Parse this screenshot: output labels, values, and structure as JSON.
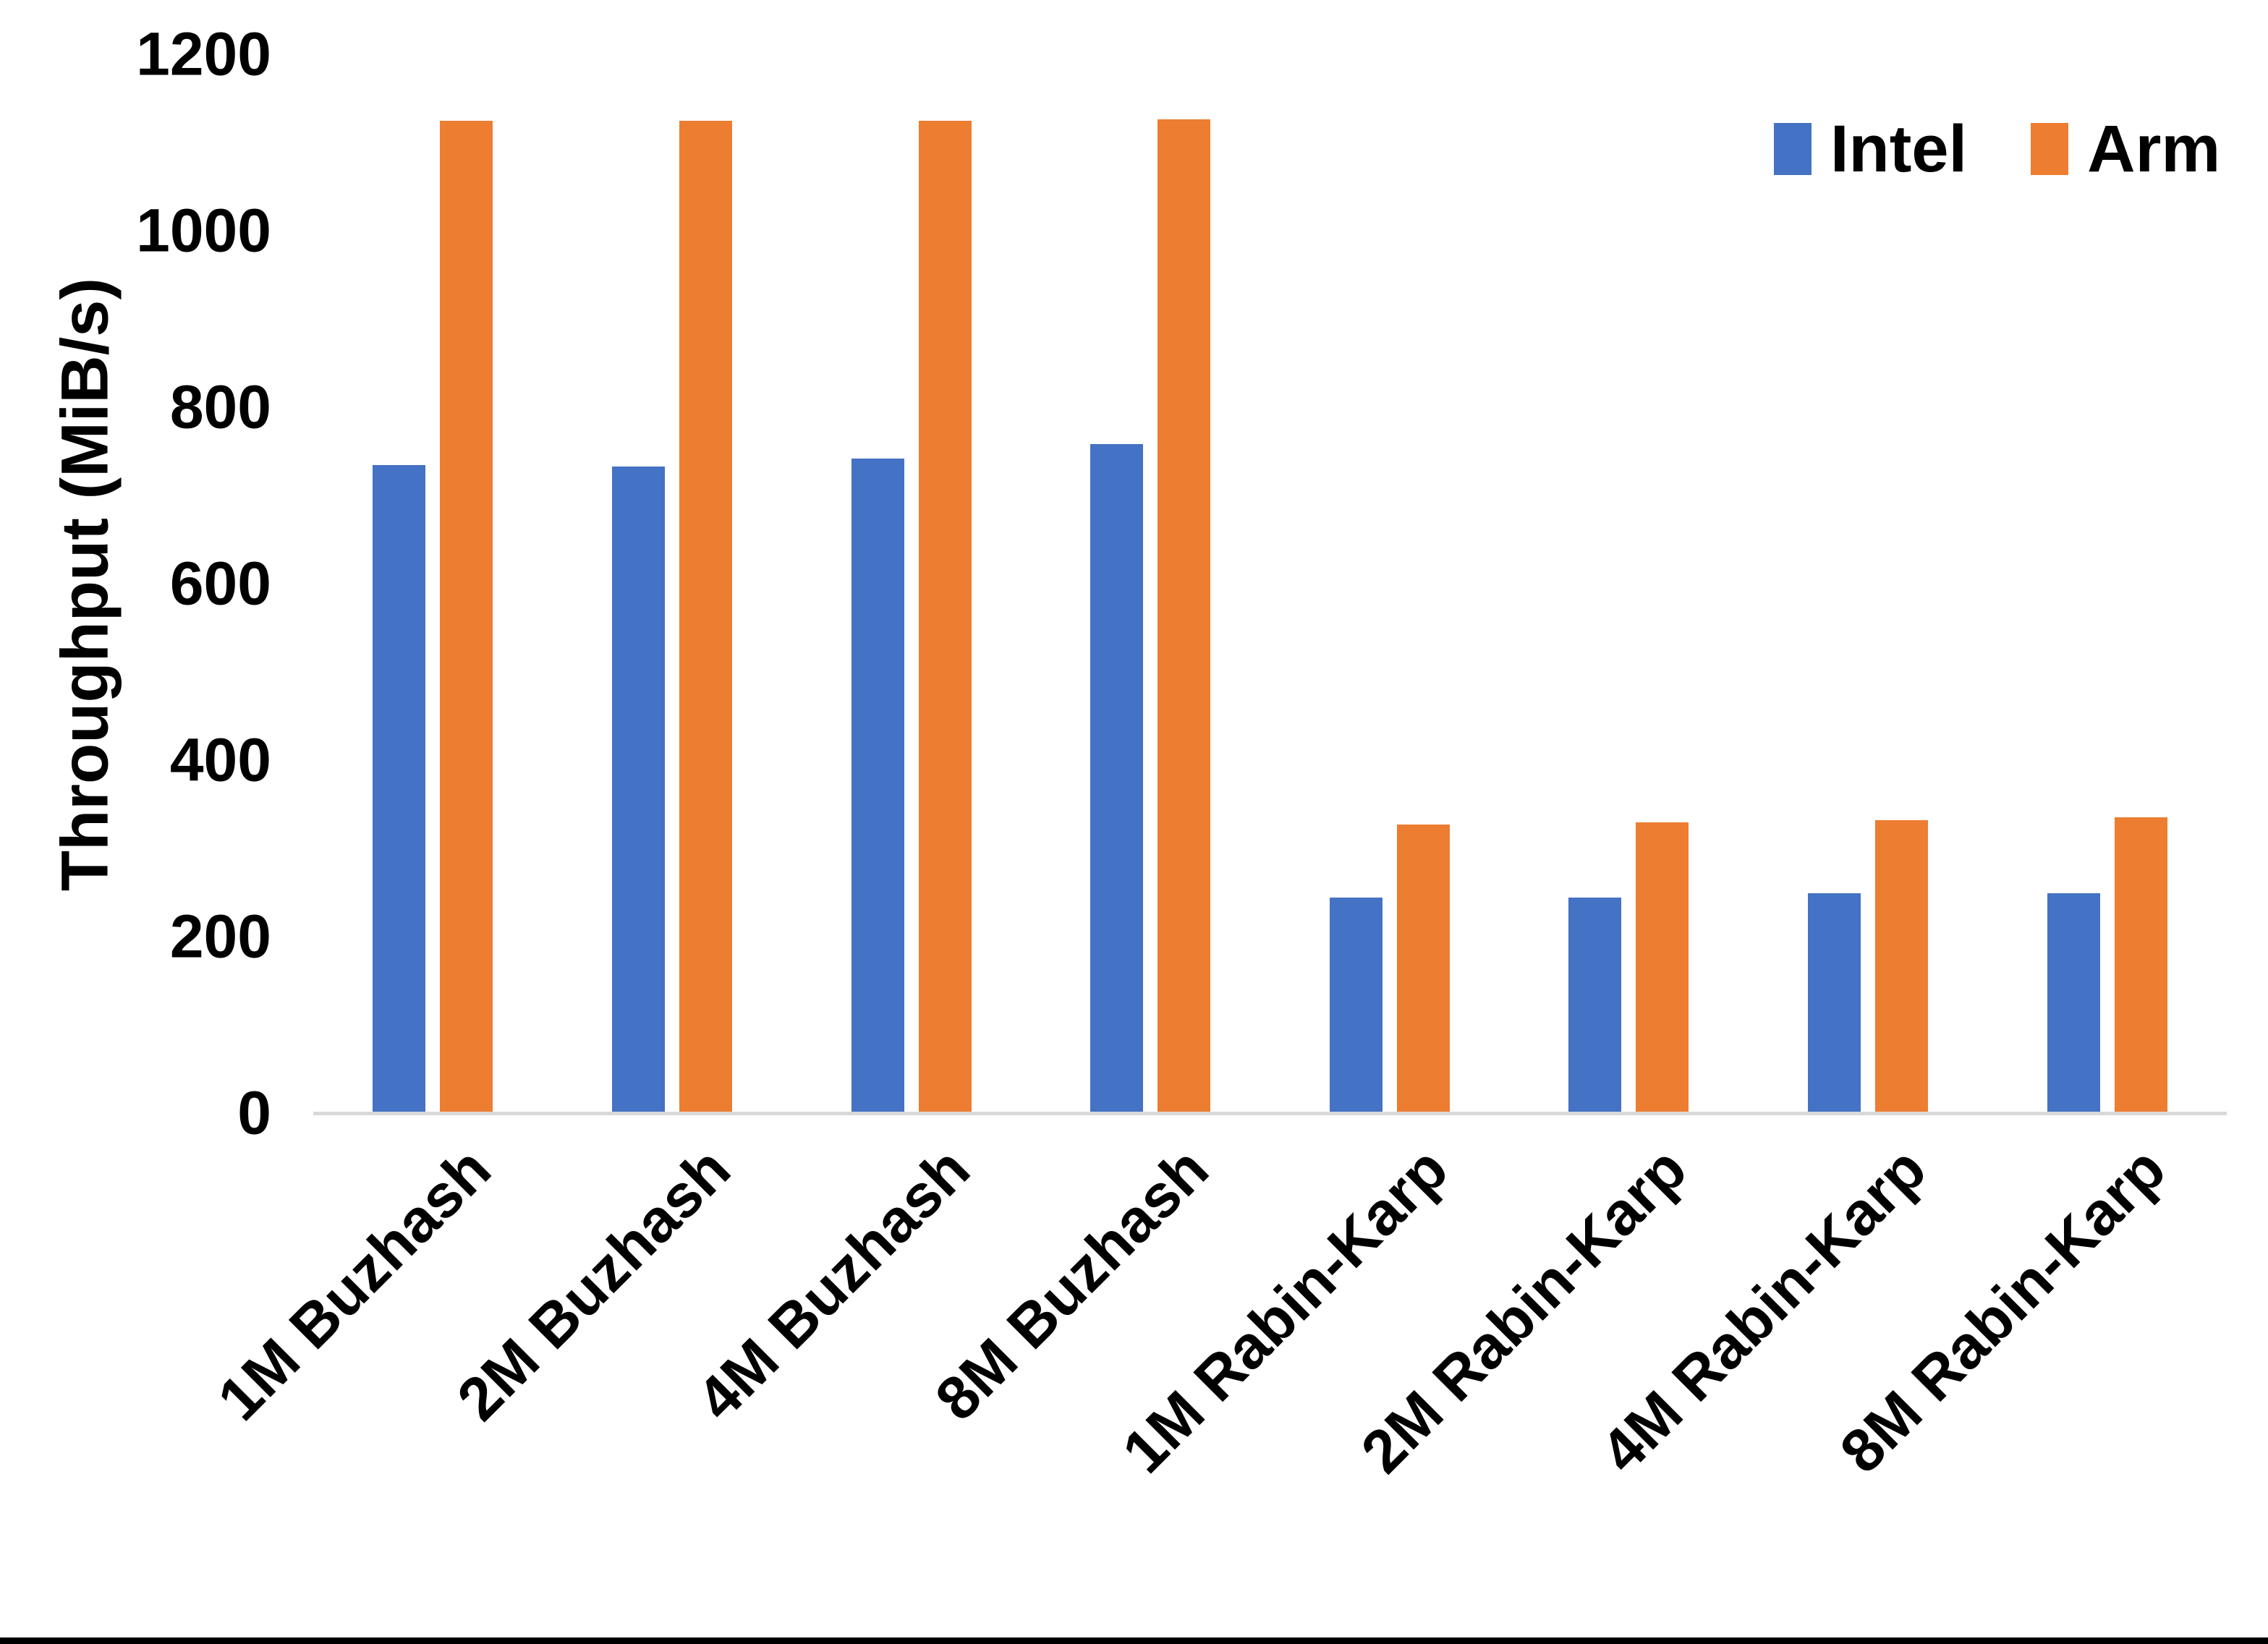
{
  "chart_data": {
    "type": "bar",
    "title": "",
    "xlabel": "",
    "ylabel": "Throughput (MiB/s)",
    "categories": [
      "1M Buzhash",
      "2M Buzhash",
      "4M Buzhash",
      "8M Buzhash",
      "1M Rabin-Karp",
      "2M Rabin-Karp",
      "4M Rabin-Karp",
      "8M Rabin-Karp"
    ],
    "series": [
      {
        "name": "Intel",
        "color": "#4472C4",
        "values": [
          735,
          734,
          743,
          759,
          245,
          245,
          250,
          250
        ]
      },
      {
        "name": "Arm",
        "color": "#ED7D31",
        "values": [
          1125,
          1125,
          1125,
          1127,
          328,
          330,
          333,
          336
        ]
      }
    ],
    "ylim": [
      0,
      1200
    ],
    "yticks": [
      0,
      200,
      400,
      600,
      800,
      1000,
      1200
    ],
    "grid": false,
    "legend_position": "top-right"
  },
  "axis": {
    "line_color": "#D9D9D9",
    "label_color": "#000000"
  },
  "page": {
    "background": "#FFFFFF",
    "bottom_rule_color": "#000000"
  }
}
